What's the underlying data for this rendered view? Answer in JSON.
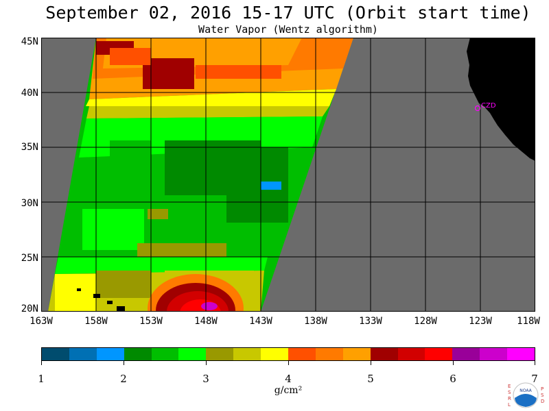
{
  "title": "September 02, 2016  15-17 UTC  (Orbit start time)",
  "subtitle": "Water Vapor (Wentz algorithm)",
  "map": {
    "lat_labels": [
      "45N",
      "40N",
      "35N",
      "30N",
      "25N",
      "20N"
    ],
    "lon_labels": [
      "163W",
      "158W",
      "153W",
      "148W",
      "143W",
      "138W",
      "133W",
      "128W",
      "123W",
      "118W"
    ],
    "station_label": "CZD",
    "colors": {
      "no_data": "#6b6b6b",
      "land": "#000000",
      "grid": "#000000",
      "station": "#ff00ff"
    }
  },
  "colorbar": {
    "colors": [
      "#004c6e",
      "#0070b4",
      "#0096ff",
      "#008a00",
      "#00be00",
      "#00ff00",
      "#999900",
      "#c8c800",
      "#ffff00",
      "#ff5000",
      "#ff7a00",
      "#ffa000",
      "#a00000",
      "#d20000",
      "#ff0000",
      "#990099",
      "#cc00cc",
      "#ff00ff"
    ],
    "ticks": [
      "1",
      "2",
      "3",
      "4",
      "5",
      "6",
      "7"
    ],
    "units": "g/cm²"
  },
  "logo": {
    "left_letters": "ESRL",
    "right_letters": "PSD",
    "center": "NOAA"
  }
}
